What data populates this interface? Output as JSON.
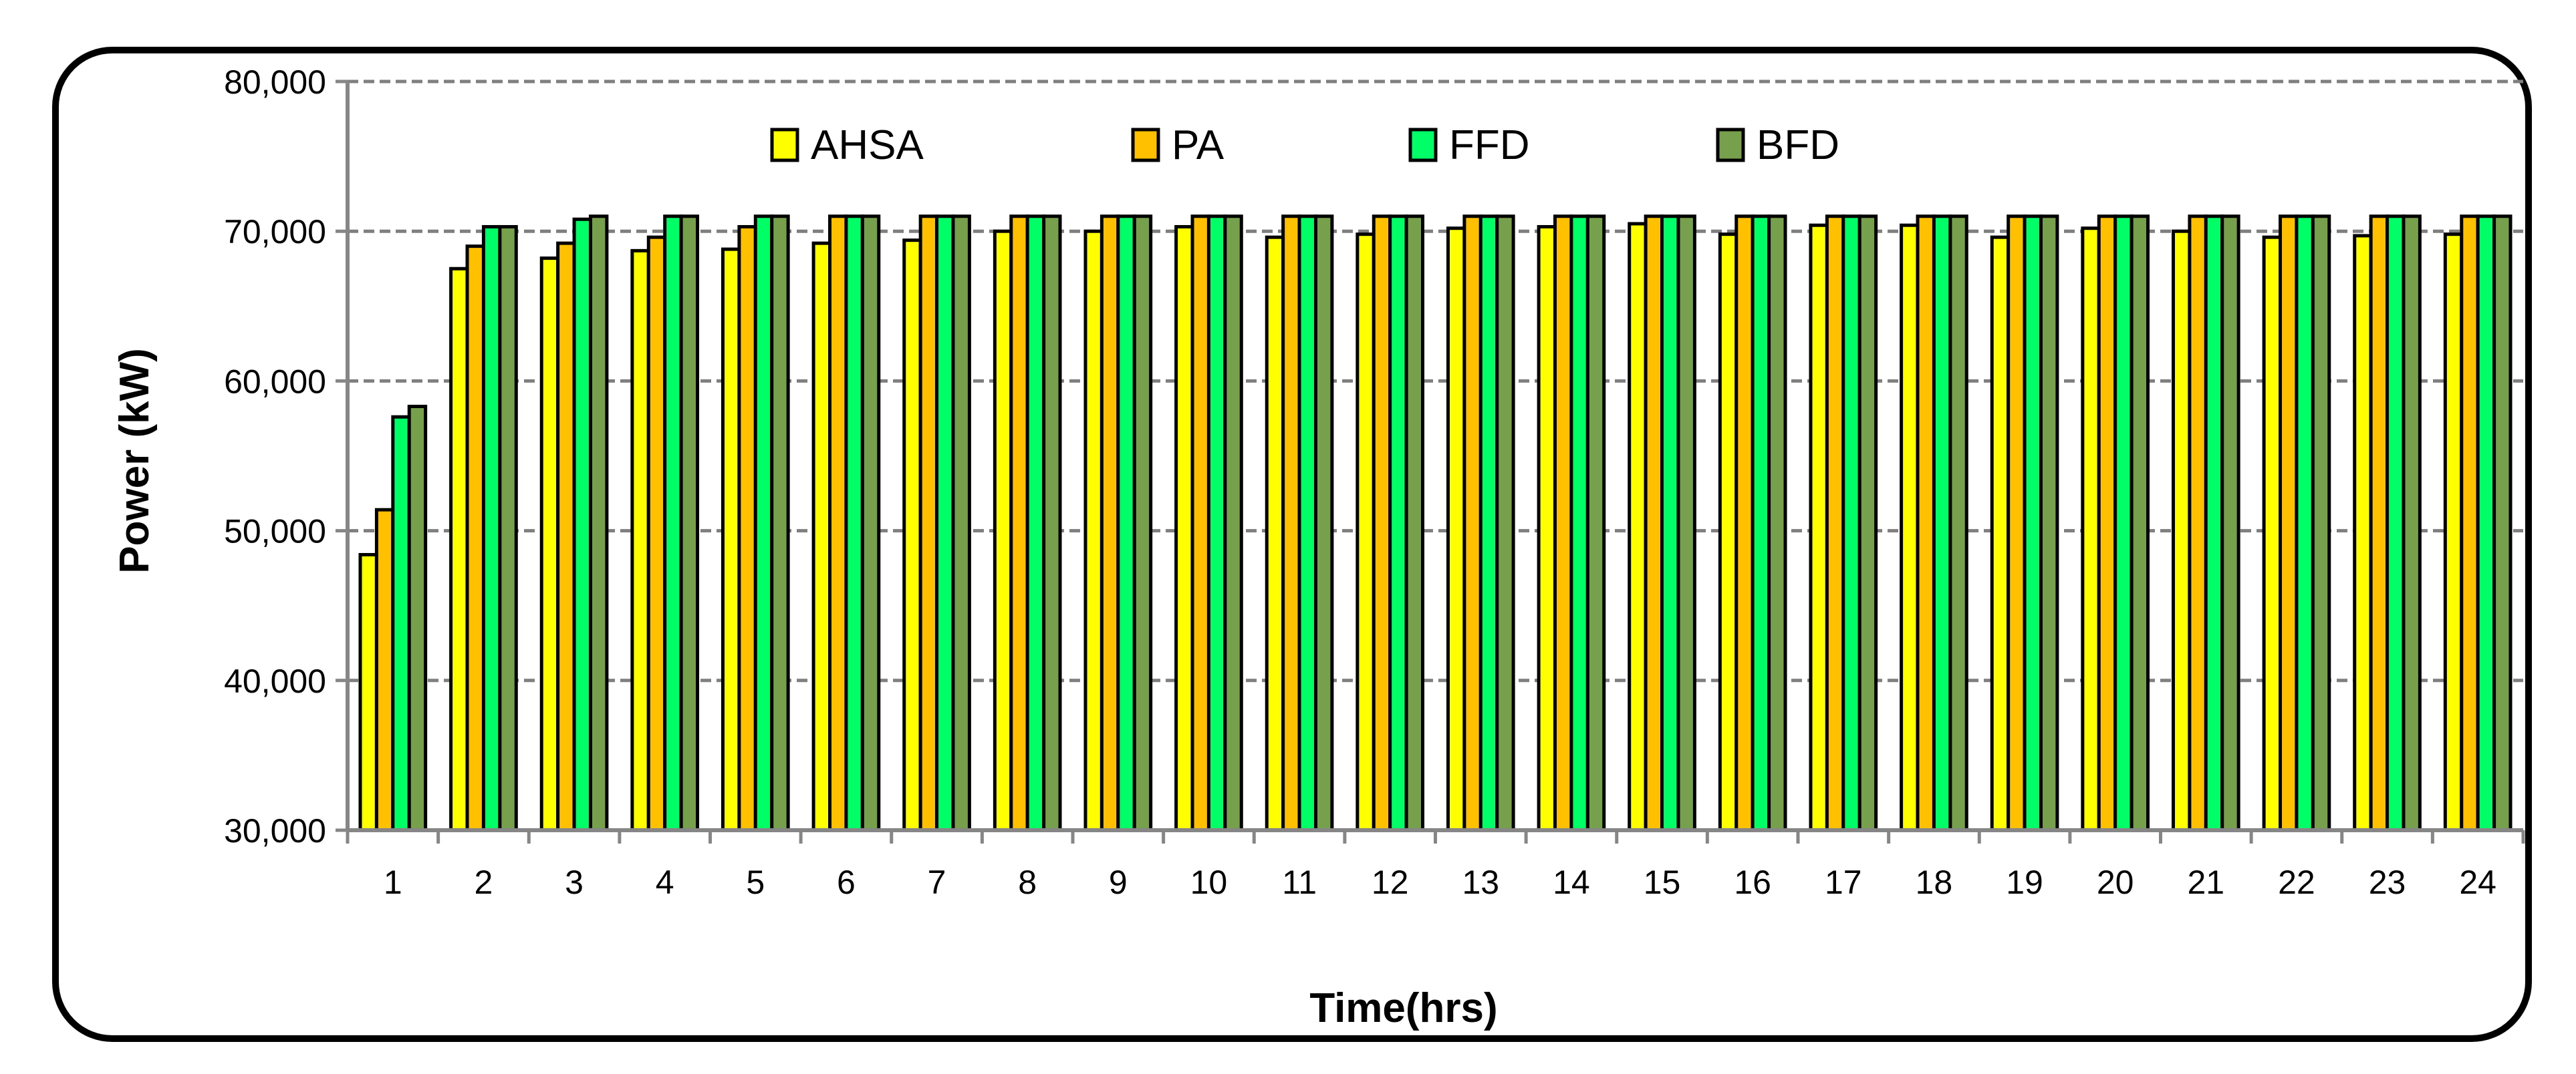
{
  "chart_data": {
    "type": "bar",
    "title": "",
    "xlabel": "Time(hrs)",
    "ylabel": "Power (kW)",
    "ylim": [
      30000,
      80000
    ],
    "yticks": [
      30000,
      40000,
      50000,
      60000,
      70000,
      80000
    ],
    "ytick_labels": [
      "30,000",
      "40,000",
      "50,000",
      "60,000",
      "70,000",
      "80,000"
    ],
    "grid": true,
    "legend_position": "top",
    "categories": [
      "1",
      "2",
      "3",
      "4",
      "5",
      "6",
      "7",
      "8",
      "9",
      "10",
      "11",
      "12",
      "13",
      "14",
      "15",
      "16",
      "17",
      "18",
      "19",
      "20",
      "21",
      "22",
      "23",
      "24"
    ],
    "series": [
      {
        "name": "AHSA",
        "color": "#FFFF00",
        "values": [
          48400,
          67500,
          68200,
          68700,
          68800,
          69200,
          69400,
          70000,
          70000,
          70300,
          69600,
          69800,
          70200,
          70300,
          70500,
          69800,
          70400,
          70400,
          69600,
          70200,
          70000,
          69600,
          69700,
          69800
        ]
      },
      {
        "name": "PA",
        "color": "#FFC000",
        "values": [
          51400,
          69000,
          69200,
          69600,
          70300,
          71000,
          71000,
          71000,
          71000,
          71000,
          71000,
          71000,
          71000,
          71000,
          71000,
          71000,
          71000,
          71000,
          71000,
          71000,
          71000,
          71000,
          71000,
          71000
        ]
      },
      {
        "name": "FFD",
        "color": "#00FF66",
        "values": [
          57600,
          70300,
          70800,
          71000,
          71000,
          71000,
          71000,
          71000,
          71000,
          71000,
          71000,
          71000,
          71000,
          71000,
          71000,
          71000,
          71000,
          71000,
          71000,
          71000,
          71000,
          71000,
          71000,
          71000
        ]
      },
      {
        "name": "BFD",
        "color": "#77A04C",
        "values": [
          58300,
          70300,
          71000,
          71000,
          71000,
          71000,
          71000,
          71000,
          71000,
          71000,
          71000,
          71000,
          71000,
          71000,
          71000,
          71000,
          71000,
          71000,
          71000,
          71000,
          71000,
          71000,
          71000,
          71000
        ]
      }
    ]
  }
}
